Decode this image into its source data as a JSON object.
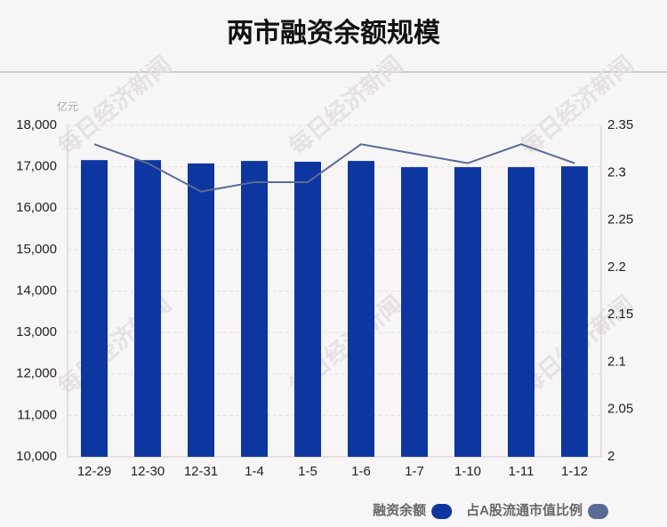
{
  "chart_data": {
    "type": "bar_line",
    "title": "两市融资余额规模",
    "y_label": "亿元",
    "watermark": "每日经济新闻",
    "categories": [
      "12-29",
      "12-30",
      "12-31",
      "1-4",
      "1-5",
      "1-6",
      "1-7",
      "1-10",
      "1-11",
      "1-12"
    ],
    "series": [
      {
        "name": "融资余额",
        "type": "bar",
        "color": "#0d36a0",
        "values": [
          17160,
          17160,
          17080,
          17140,
          17120,
          17140,
          16990,
          16990,
          16990,
          17010
        ]
      },
      {
        "name": "占A股流通市值比例",
        "type": "line",
        "axis": "y2",
        "color": "#5a6b96",
        "values": [
          2.33,
          2.31,
          2.28,
          2.29,
          2.29,
          2.33,
          2.32,
          2.31,
          2.33,
          2.31
        ]
      }
    ],
    "ylim": [
      10000,
      18000
    ],
    "yticks": [
      {
        "value": 10000,
        "label": "10,000"
      },
      {
        "value": 11000,
        "label": "11,000"
      },
      {
        "value": 12000,
        "label": "12,000"
      },
      {
        "value": 13000,
        "label": "13,000"
      },
      {
        "value": 14000,
        "label": "14,000"
      },
      {
        "value": 15000,
        "label": "15,000"
      },
      {
        "value": 16000,
        "label": "16,000"
      },
      {
        "value": 17000,
        "label": "17,000"
      },
      {
        "value": 18000,
        "label": "18,000"
      }
    ],
    "y2lim": [
      2,
      2.35
    ],
    "y2ticks": [
      2,
      2.05,
      2.1,
      2.15,
      2.2,
      2.25,
      2.3,
      2.35
    ],
    "grid": true,
    "legend": "bottom-right"
  }
}
